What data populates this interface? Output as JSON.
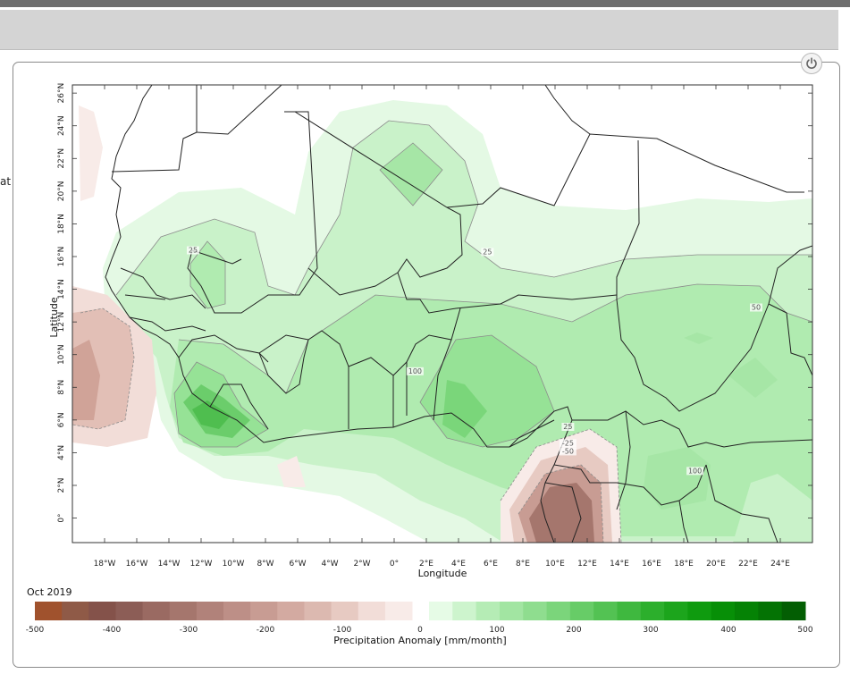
{
  "panel": {
    "side_text": "at",
    "date_label": "Oct 2019",
    "power_icon": "power-icon"
  },
  "chart_data": {
    "type": "heatmap",
    "title": "",
    "xlabel": "Longitude",
    "ylabel": "Latitude",
    "xlim": [
      -20,
      26
    ],
    "ylim": [
      -1.5,
      26.5
    ],
    "x_ticks": [
      "18°W",
      "16°W",
      "14°W",
      "12°W",
      "10°W",
      "8°W",
      "6°W",
      "4°W",
      "2°W",
      "0°",
      "2°E",
      "4°E",
      "6°E",
      "8°E",
      "10°E",
      "12°E",
      "14°E",
      "16°E",
      "18°E",
      "20°E",
      "22°E",
      "24°E"
    ],
    "x_tick_values": [
      -18,
      -16,
      -14,
      -12,
      -10,
      -8,
      -6,
      -4,
      -2,
      0,
      2,
      4,
      6,
      8,
      10,
      12,
      14,
      16,
      18,
      20,
      22,
      24
    ],
    "y_ticks": [
      "0°",
      "2°N",
      "4°N",
      "6°N",
      "8°N",
      "10°N",
      "12°N",
      "14°N",
      "16°N",
      "18°N",
      "20°N",
      "22°N",
      "24°N",
      "26°N"
    ],
    "y_tick_values": [
      0,
      2,
      4,
      6,
      8,
      10,
      12,
      14,
      16,
      18,
      20,
      22,
      24,
      26
    ],
    "contour_labels": [
      {
        "text": "25",
        "lon": -12.5,
        "lat": 16.3
      },
      {
        "text": "25",
        "lon": 5.8,
        "lat": 16.2
      },
      {
        "text": "50",
        "lon": 22.5,
        "lat": 12.8
      },
      {
        "text": "100",
        "lon": 1.3,
        "lat": 8.9
      },
      {
        "text": "25",
        "lon": 10.8,
        "lat": 5.5
      },
      {
        "text": "-25",
        "lon": 10.8,
        "lat": 4.5
      },
      {
        "text": "-50",
        "lon": 10.8,
        "lat": 4.0
      },
      {
        "text": "100",
        "lon": 18.7,
        "lat": 2.8
      }
    ],
    "colorbar": {
      "label": "Precipitation Anomaly [mm/month]",
      "tick_labels": [
        "-500",
        "-400",
        "-300",
        "-200",
        "-100",
        "0",
        "100",
        "200",
        "300",
        "400",
        "500"
      ],
      "negative_colors": [
        "#a0522d",
        "#8f5a47",
        "#84524a",
        "#8c5d56",
        "#9a6a62",
        "#a5766d",
        "#b1827a",
        "#bd8f87",
        "#c89c93",
        "#d3aaa1",
        "#dcb9b0",
        "#e7cac2",
        "#f2ddd8",
        "#f8ebe8"
      ],
      "positive_colors": [
        "#e6fbe6",
        "#cdf4cd",
        "#b5ecb5",
        "#a2e5a2",
        "#8fdd8f",
        "#7bd57b",
        "#67cc67",
        "#53c253",
        "#3fb83f",
        "#2caf2c",
        "#1ca51c",
        "#0f9b0f",
        "#078f07",
        "#058205",
        "#047304",
        "#035e03"
      ]
    }
  }
}
